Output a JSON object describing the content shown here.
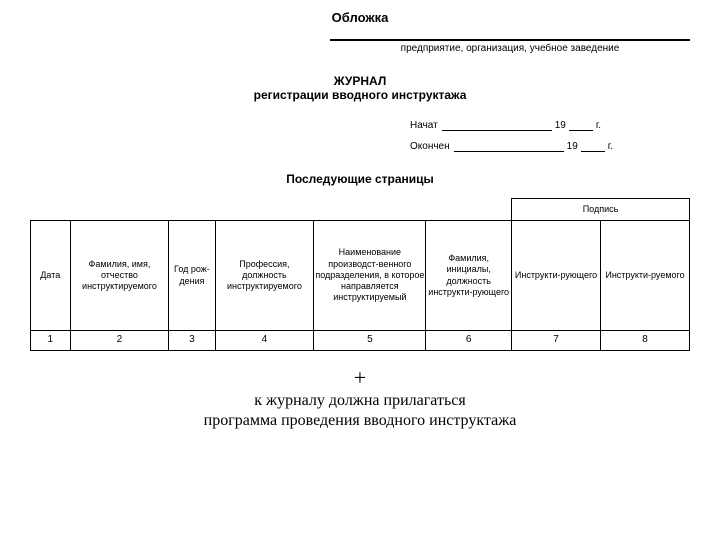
{
  "cover": {
    "title": "Обложка",
    "org_caption": "предприятие, организация, учебное заведение",
    "journal_title": "ЖУРНАЛ",
    "journal_sub": "регистрации вводного инструктажа",
    "started_label": "Начат",
    "finished_label": "Окончен",
    "year_prefix": "19",
    "year_suffix": "г."
  },
  "pages_title": "Последующие страницы",
  "table": {
    "signature_header": "Подпись",
    "columns": [
      "Дата",
      "Фамилия, имя, отчество инструктируемого",
      "Год рож-дения",
      "Профессия, должность инструктируемого",
      "Наименование производст-венного подразделения, в которое направляется инструктируемый",
      "Фамилия, инициалы, должность инструкти-рующего",
      "Инструкти-рующего",
      "Инструкти-руемого"
    ],
    "numbers": [
      "1",
      "2",
      "3",
      "4",
      "5",
      "6",
      "7",
      "8"
    ],
    "col_widths_pct": [
      6,
      15,
      7,
      15,
      17,
      13,
      13.5,
      13.5
    ]
  },
  "footer": {
    "plus": "+",
    "note_line1": "к журналу должна прилагаться",
    "note_line2": "программа проведения вводного инструктажа"
  }
}
